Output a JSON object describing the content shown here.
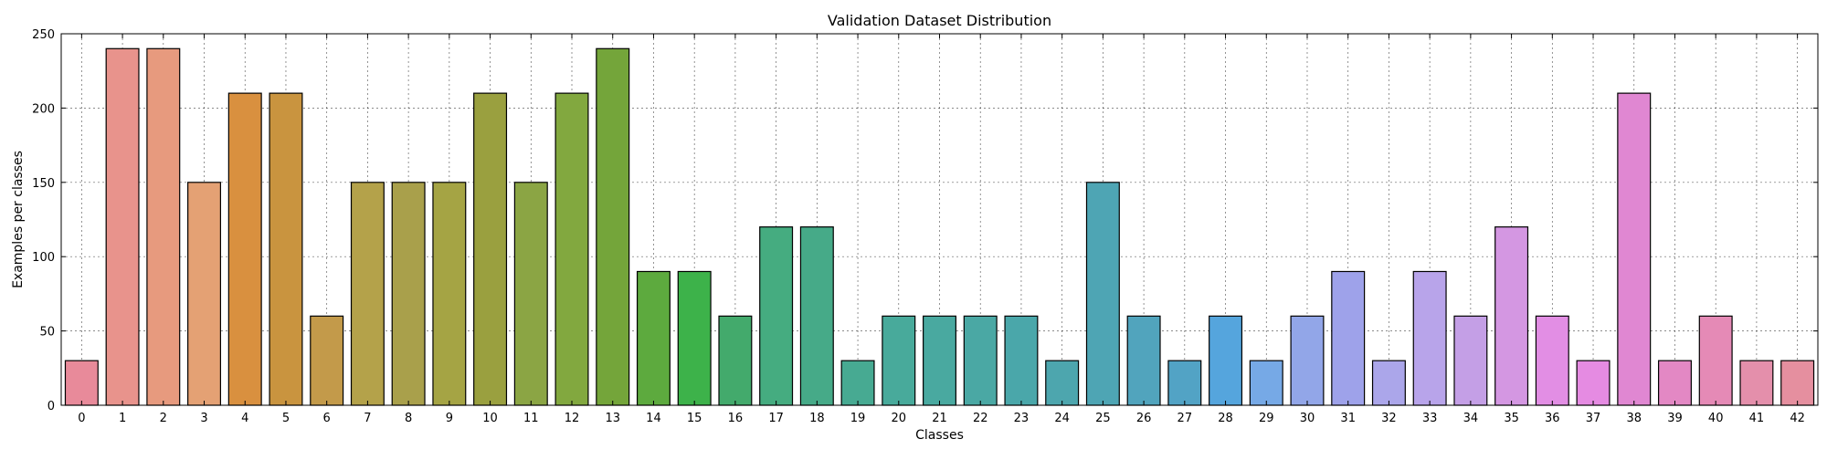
{
  "chart_data": {
    "type": "bar",
    "title": "Validation Dataset Distribution",
    "xlabel": "Classes",
    "ylabel": "Examples per classes",
    "ylim": [
      0,
      250
    ],
    "yticks": [
      0,
      50,
      100,
      150,
      200,
      250
    ],
    "grid": true,
    "categories": [
      "0",
      "1",
      "2",
      "3",
      "4",
      "5",
      "6",
      "7",
      "8",
      "9",
      "10",
      "11",
      "12",
      "13",
      "14",
      "15",
      "16",
      "17",
      "18",
      "19",
      "20",
      "21",
      "22",
      "23",
      "24",
      "25",
      "26",
      "27",
      "28",
      "29",
      "30",
      "31",
      "32",
      "33",
      "34",
      "35",
      "36",
      "37",
      "38",
      "39",
      "40",
      "41",
      "42"
    ],
    "values": [
      30,
      240,
      240,
      150,
      210,
      210,
      60,
      150,
      150,
      150,
      210,
      150,
      210,
      240,
      90,
      90,
      60,
      120,
      120,
      30,
      60,
      60,
      60,
      60,
      30,
      150,
      60,
      30,
      60,
      30,
      60,
      90,
      30,
      90,
      60,
      120,
      60,
      30,
      210,
      30,
      60,
      30,
      30
    ],
    "colors": [
      "#e88a9a",
      "#e8938c",
      "#e79a7e",
      "#e4a174",
      "#d9903f",
      "#c9943f",
      "#c39a4a",
      "#b4a24a",
      "#a9a04b",
      "#a5a444",
      "#9aa03f",
      "#8ba544",
      "#82a83f",
      "#74a53a",
      "#5daa3e",
      "#3db24a",
      "#43aa6c",
      "#45ac80",
      "#46aa88",
      "#47aa92",
      "#48aa9b",
      "#49a9a0",
      "#4aa8a4",
      "#4aa7aa",
      "#4da6ae",
      "#4ea5b4",
      "#51a4bd",
      "#52a3c5",
      "#55a5dd",
      "#76a9e6",
      "#92a6e8",
      "#9ea2ea",
      "#aba6ea",
      "#b8a4ea",
      "#c49fe6",
      "#d497e2",
      "#e28ee4",
      "#e58be2",
      "#e087d2",
      "#e388c4",
      "#e58ab6",
      "#e48fab",
      "#e58f9f"
    ]
  }
}
